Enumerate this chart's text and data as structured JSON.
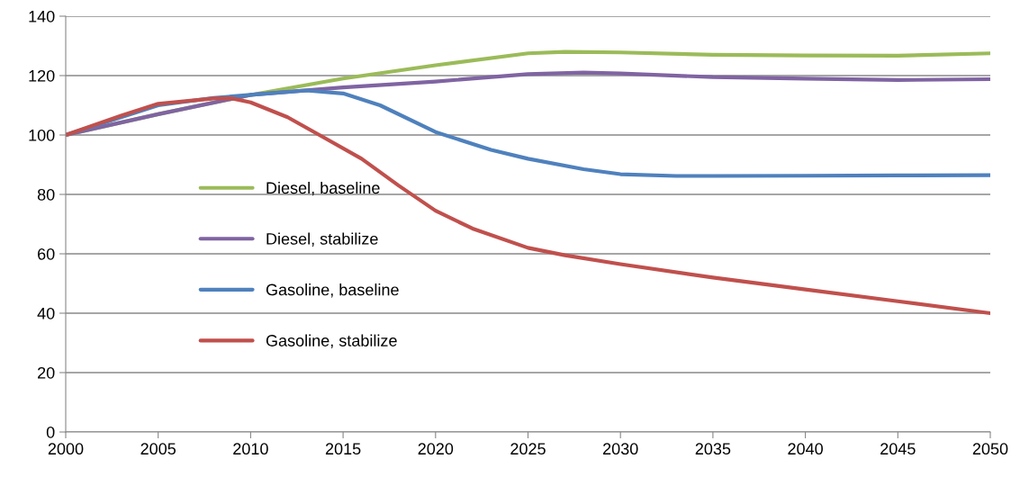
{
  "chart_data": {
    "type": "line",
    "xlim": [
      2000,
      2050
    ],
    "xticks": [
      2000,
      2005,
      2010,
      2015,
      2020,
      2025,
      2030,
      2035,
      2040,
      2045,
      2050
    ],
    "ylim": [
      0,
      140
    ],
    "yticks": [
      0,
      20,
      40,
      60,
      80,
      100,
      120,
      140
    ],
    "grid": "y",
    "legend": "left",
    "marker": "none",
    "line_style": "solid",
    "series": [
      {
        "name": "Diesel, baseline",
        "color": "#9bbb59",
        "x": [
          2000,
          2005,
          2010,
          2015,
          2020,
          2025,
          2027,
          2030,
          2035,
          2040,
          2045,
          2050
        ],
        "values": [
          100,
          107,
          113.5,
          119,
          123.5,
          127.5,
          128,
          127.8,
          127,
          126.8,
          126.7,
          127.5
        ]
      },
      {
        "name": "Diesel, stabilize",
        "color": "#8064a2",
        "x": [
          2000,
          2005,
          2010,
          2015,
          2020,
          2025,
          2028,
          2030,
          2035,
          2040,
          2045,
          2050
        ],
        "values": [
          100,
          107,
          113.5,
          116,
          118,
          120.5,
          121,
          120.7,
          119.5,
          119,
          118.5,
          118.8
        ]
      },
      {
        "name": "Gasoline, baseline",
        "color": "#4f81bd",
        "x": [
          2000,
          2003,
          2005,
          2008,
          2010,
          2013,
          2015,
          2017,
          2020,
          2023,
          2025,
          2028,
          2030,
          2033,
          2035,
          2040,
          2045,
          2050
        ],
        "values": [
          100,
          106,
          110,
          112.5,
          113.5,
          115,
          114,
          110,
          101,
          95,
          92,
          88.5,
          86.8,
          86.2,
          86.2,
          86.3,
          86.4,
          86.5
        ]
      },
      {
        "name": "Gasoline, stabilize",
        "color": "#c0504d",
        "x": [
          2000,
          2003,
          2005,
          2008,
          2009,
          2010,
          2012,
          2014,
          2016,
          2018,
          2020,
          2022,
          2025,
          2027,
          2030,
          2035,
          2040,
          2045,
          2050
        ],
        "values": [
          100,
          106.5,
          110.5,
          112.3,
          112.3,
          111,
          106,
          99,
          92,
          83,
          74.5,
          68.5,
          62,
          59.5,
          56.5,
          52,
          48,
          44,
          40
        ]
      }
    ]
  }
}
